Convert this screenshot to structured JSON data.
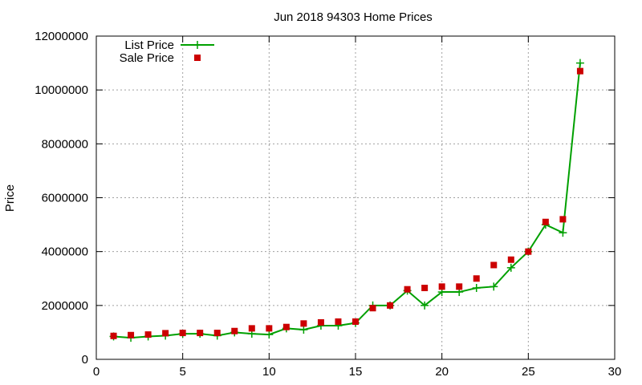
{
  "chart_data": {
    "type": "line",
    "title": "Jun 2018 94303 Home Prices",
    "xlabel": "",
    "ylabel": "Price",
    "xlim": [
      0,
      30
    ],
    "ylim": [
      0,
      12000000
    ],
    "x_ticks": [
      0,
      5,
      10,
      15,
      20,
      25,
      30
    ],
    "y_ticks": [
      0,
      2000000,
      4000000,
      6000000,
      8000000,
      10000000,
      12000000
    ],
    "grid": true,
    "legend_position": "top-left",
    "series": [
      {
        "name": "List Price",
        "style": "line-plus",
        "color": "#00a000",
        "x": [
          1,
          2,
          3,
          4,
          5,
          6,
          7,
          8,
          9,
          10,
          11,
          12,
          13,
          14,
          15,
          16,
          17,
          18,
          19,
          20,
          21,
          22,
          23,
          24,
          25,
          26,
          27,
          28
        ],
        "values": [
          850000,
          800000,
          850000,
          880000,
          950000,
          950000,
          880000,
          1000000,
          950000,
          920000,
          1150000,
          1100000,
          1250000,
          1250000,
          1350000,
          2000000,
          2000000,
          2550000,
          2000000,
          2500000,
          2500000,
          2650000,
          2700000,
          3400000,
          4000000,
          5000000,
          4700000,
          11000000
        ]
      },
      {
        "name": "Sale Price",
        "style": "square-marker",
        "color": "#cc0000",
        "x": [
          1,
          2,
          3,
          4,
          5,
          6,
          7,
          8,
          9,
          10,
          11,
          12,
          13,
          14,
          15,
          16,
          17,
          18,
          19,
          20,
          21,
          22,
          23,
          24,
          25,
          26,
          27,
          28
        ],
        "values": [
          870000,
          900000,
          920000,
          970000,
          980000,
          980000,
          980000,
          1050000,
          1150000,
          1150000,
          1200000,
          1330000,
          1370000,
          1400000,
          1400000,
          1900000,
          2000000,
          2600000,
          2650000,
          2700000,
          2700000,
          3000000,
          3500000,
          3700000,
          4000000,
          5100000,
          5200000,
          10700000
        ]
      }
    ]
  }
}
